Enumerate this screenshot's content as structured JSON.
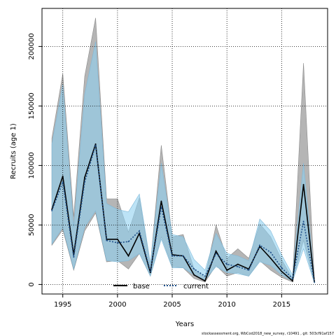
{
  "chart_data": {
    "type": "area",
    "xlabel": "Years",
    "ylabel": "Recruits (age 1)",
    "xlim": [
      1993.1,
      2019.2
    ],
    "ylim": [
      -8000,
      232000
    ],
    "x_ticks": [
      "1995",
      "2000",
      "2005",
      "2010",
      "2015"
    ],
    "y_ticks": [
      "0",
      "50000",
      "100000",
      "150000",
      "200000"
    ],
    "grid": true,
    "legend_position": "bottom-center",
    "footnote": "stockassessment.org, WbCod2018_new_survey, r10491 , git: 503cf91af157",
    "x": [
      1994,
      1995,
      1996,
      1997,
      1998,
      1999,
      2000,
      2001,
      2002,
      2003,
      2004,
      2005,
      2006,
      2007,
      2008,
      2009,
      2010,
      2011,
      2012,
      2013,
      2014,
      2015,
      2016,
      2017,
      2018
    ],
    "series": [
      {
        "name": "base",
        "color": "#000000",
        "band_color": "#a8a8a8",
        "values": [
          63000,
          91000,
          25000,
          90000,
          118000,
          38000,
          38000,
          24000,
          43000,
          10000,
          70000,
          25000,
          24000,
          8000,
          3000,
          28000,
          12000,
          17000,
          13000,
          32000,
          22000,
          11000,
          3000,
          84000,
          2000
        ],
        "lower": [
          33000,
          46000,
          12000,
          45000,
          60000,
          19000,
          20000,
          13000,
          26000,
          7000,
          40000,
          15000,
          14000,
          5000,
          2000,
          16000,
          7000,
          10000,
          7000,
          20000,
          12000,
          6000,
          2000,
          37000,
          1000
        ],
        "upper": [
          123000,
          177000,
          57000,
          175000,
          224000,
          72000,
          72000,
          44000,
          73000,
          16000,
          117000,
          40000,
          42000,
          13000,
          6000,
          50000,
          22000,
          30000,
          22000,
          51000,
          40000,
          21000,
          5000,
          186000,
          3000
        ]
      },
      {
        "name": "current",
        "color": "#1e4f8a",
        "band_color": "#8fd0f0",
        "values": [
          62000,
          86000,
          23000,
          86000,
          117000,
          37000,
          35000,
          36000,
          45000,
          11000,
          65000,
          24000,
          24000,
          13000,
          7000,
          26000,
          17000,
          15000,
          12000,
          33000,
          27000,
          14000,
          5000,
          53000,
          2000
        ],
        "lower": [
          34000,
          48000,
          13000,
          48000,
          62000,
          20000,
          19000,
          20000,
          26000,
          7000,
          38000,
          14000,
          14000,
          8000,
          4000,
          15000,
          10000,
          9000,
          7000,
          19000,
          16000,
          8000,
          3000,
          30000,
          1000
        ],
        "upper": [
          118000,
          168000,
          48000,
          160000,
          204000,
          68000,
          63000,
          61000,
          76000,
          18000,
          102000,
          42000,
          40000,
          21000,
          12000,
          43000,
          26000,
          24000,
          20000,
          55000,
          45000,
          25000,
          8000,
          102000,
          4000
        ]
      }
    ]
  }
}
